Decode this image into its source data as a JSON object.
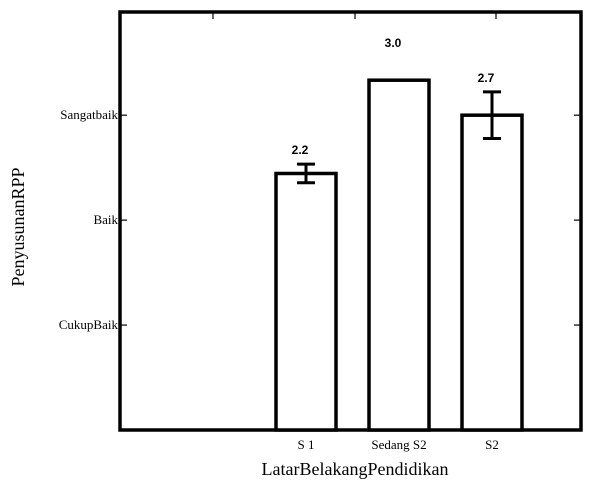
{
  "chart_data": {
    "type": "bar",
    "title": "",
    "xlabel": "LatarBelakangPendidikan",
    "ylabel": "PenyusunanRPP",
    "categories": [
      "S 1",
      "Sedang S2",
      "S2"
    ],
    "values": [
      2.2,
      3.0,
      2.7
    ],
    "data_labels": [
      "2.2",
      "3.0",
      "2.7"
    ],
    "error": [
      0.08,
      0,
      0.2
    ],
    "ylim": [
      0,
      3.6
    ],
    "y_ticks": [
      {
        "value": 0.9,
        "label": "CukupBaik"
      },
      {
        "value": 1.8,
        "label": "Baik"
      },
      {
        "value": 2.7,
        "label": "Sangatbaik"
      }
    ],
    "grid": false,
    "bar_fill": "#ffffff",
    "bar_edge": "#000000"
  }
}
